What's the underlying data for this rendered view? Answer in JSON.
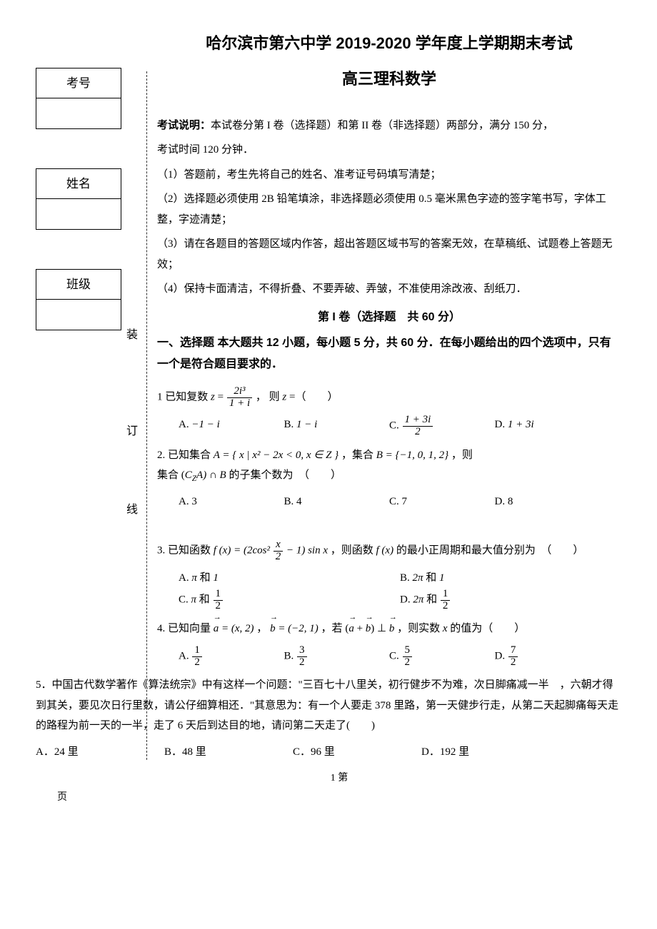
{
  "left": {
    "boxes": [
      "考号",
      "姓名",
      "班级"
    ],
    "vertical": [
      "装",
      "订",
      "线"
    ]
  },
  "header": {
    "title1": "哈尔滨市第六中学 2019-2020 学年度上学期期末考试",
    "title2": "高三理科数学"
  },
  "instructions": {
    "intro1": "考试说明：",
    "intro2": "本试卷分第 I 卷（选择题）和第 II 卷（非选择题）两部分，满分 150 分，",
    "intro3": "考试时间 120 分钟．",
    "i1": "（1）答题前，考生先将自己的姓名、准考证号码填写清楚；",
    "i2": "（2）选择题必须使用 2B 铅笔填涂，非选择题必须使用 0.5 毫米黑色字迹的签字笔书写，字体工整，字迹清楚；",
    "i3": "（3）请在各题目的答题区域内作答，超出答题区域书写的答案无效，在草稿纸、试题卷上答题无效；",
    "i4": "（4）保持卡面清洁，不得折叠、不要弄破、弄皱，不准使用涂改液、刮纸刀．"
  },
  "section1": {
    "title": "第 I 卷（选择题　共 60 分）",
    "desc": "一、选择题  本大题共 12 小题，每小题 5 分，共 60 分．在每小题给出的四个选项中，只有一个是符合题目要求的．"
  },
  "q1": {
    "before": "1 已知复数 ",
    "z_eq": "z",
    "frac_num": "2i³",
    "frac_den": "1 + i",
    "after": "， 则 ",
    "z2": "z",
    "tail": " =（　　）",
    "A_label": "A. ",
    "A_val": "−1 − i",
    "B_label": "B. ",
    "B_val": "1 − i",
    "C_label": "C. ",
    "C_num": "1 + 3i",
    "C_den": "2",
    "D_label": "D. ",
    "D_val": "1 + 3i"
  },
  "q2": {
    "line1_a": "2. 已知集合 ",
    "line1_b": "A = { x | x² − 2x < 0, x ∈ Z }",
    "line1_c": "，集合 ",
    "line1_d": "B = {−1, 0, 1, 2}",
    "line1_e": " ，则",
    "line2_a": "集合 (",
    "line2_b": "C",
    "line2_sub": "Z",
    "line2_c": "A) ∩ B",
    "line2_d": " 的子集个数为　（　　）",
    "A": "A.  3",
    "B": "B. 4",
    "C": "C. 7",
    "D": "D. 8"
  },
  "q3": {
    "before": "3. 已知函数 ",
    "fx": "f (x) = (2cos²",
    "frac_num": "x",
    "frac_den": "2",
    "mid": " − 1) sin x",
    "after": "，则函数 ",
    "fx2": "f (x)",
    "tail": " 的最小正周期和最大值分别为　（　　）",
    "A_before": "A. ",
    "A_pi": "π",
    "A_and": " 和 ",
    "A_val": "1",
    "B_before": "B. ",
    "B_pi": "2π",
    "B_and": " 和 ",
    "B_val": "1",
    "C_before": "C. ",
    "C_pi": "π",
    "C_and": " 和 ",
    "C_num": "1",
    "C_den": "2",
    "D_before": "D. ",
    "D_pi": "2π",
    "D_and": " 和 ",
    "D_num": "1",
    "D_den": "2"
  },
  "q4": {
    "before": "4. 已知向量 ",
    "a_eq": " = (x, 2)",
    "comma": "， ",
    "b_eq": " = (−2, 1)",
    "mid": "，若 ",
    "perp": " ⊥ ",
    "after": "，则实数 ",
    "x": "x",
    "tail": " 的值为（　　）",
    "A_label": "A. ",
    "A_num": "1",
    "A_den": "2",
    "B_label": "B. ",
    "B_num": "3",
    "B_den": "2",
    "C_label": "C. ",
    "C_num": "5",
    "C_den": "2",
    "D_label": "D. ",
    "D_num": "7",
    "D_den": "2"
  },
  "q5": {
    "text": "5．中国古代数学著作《算法统宗》中有这样一个问题：\"三百七十八里关，初行健步不为难，次日脚痛减一半　，六朝才得到其关，要见次日行里数，请公仔细算相还．\"其意思为：有一个人要走 378 里路，第一天健步行走，从第二天起脚痛每天走的路程为前一天的一半，走了 6 天后到达目的地，请问第二天走了(　　)",
    "A": "A．24 里",
    "B": "B．48 里",
    "C": "C．96 里",
    "D": "D．192 里"
  },
  "footer": {
    "page_label_a": "1 第",
    "page_label_b": "页"
  }
}
